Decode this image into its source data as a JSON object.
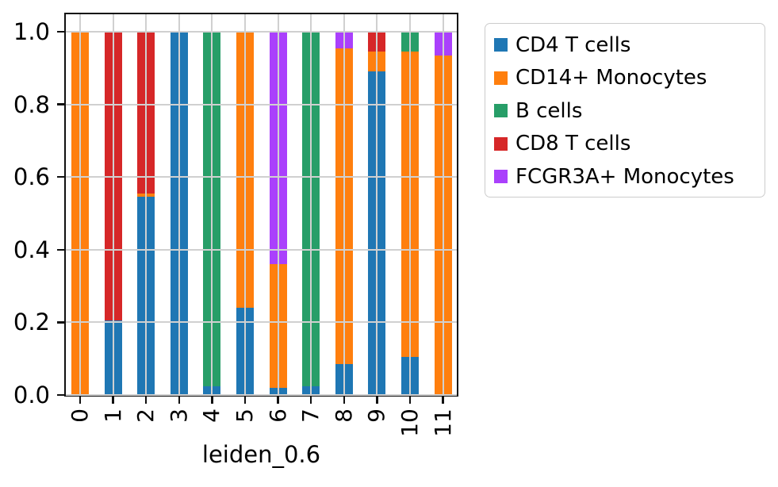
{
  "chart_data": {
    "type": "bar",
    "stacked": true,
    "orientation": "vertical",
    "title": "",
    "xlabel": "leiden_0.6",
    "ylabel": "",
    "categories": [
      "0",
      "1",
      "2",
      "3",
      "4",
      "5",
      "6",
      "7",
      "8",
      "9",
      "10",
      "11"
    ],
    "yticks": [
      "0.0",
      "0.2",
      "0.4",
      "0.6",
      "0.8",
      "1.0"
    ],
    "ytick_values": [
      0.0,
      0.2,
      0.4,
      0.6,
      0.8,
      1.0
    ],
    "ylim": [
      0,
      1.05
    ],
    "grid": true,
    "grid_above_bars": true,
    "legend_position": "outside-upper-right",
    "series": [
      {
        "name": "CD4 T cells",
        "color": "#1f77b4",
        "values": [
          0,
          0.205,
          0.545,
          1.0,
          0.025,
          0.24,
          0.02,
          0.025,
          0.085,
          0.89,
          0.105,
          0
        ]
      },
      {
        "name": "CD14+ Monocytes",
        "color": "#ff7f0e",
        "values": [
          1.0,
          0,
          0.01,
          0,
          0,
          0.76,
          0.34,
          0,
          0.87,
          0.055,
          0.84,
          0.935
        ]
      },
      {
        "name": "B cells",
        "color": "#279e68",
        "values": [
          0,
          0,
          0,
          0,
          0.975,
          0,
          0,
          0.975,
          0,
          0,
          0.055,
          0
        ]
      },
      {
        "name": "CD8 T cells",
        "color": "#d62728",
        "values": [
          0,
          0.795,
          0.445,
          0,
          0,
          0,
          0,
          0,
          0,
          0.055,
          0,
          0
        ]
      },
      {
        "name": "FCGR3A+ Monocytes",
        "color": "#aa40fc",
        "values": [
          0,
          0,
          0,
          0,
          0,
          0,
          0.64,
          0,
          0.045,
          0,
          0,
          0.065
        ]
      }
    ]
  }
}
